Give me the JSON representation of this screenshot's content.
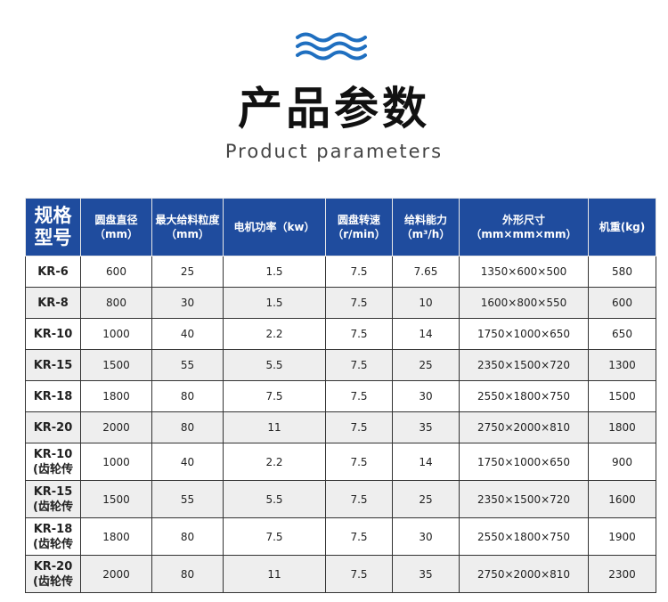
{
  "header": {
    "title": "产品参数",
    "subtitle": "Product parameters",
    "icon": "waves-icon",
    "accent": "#1f4c9e"
  },
  "table": {
    "columns": [
      "规格型号",
      "圆盘直径（mm）",
      "最大给料粒度（mm）",
      "电机功率（kw）",
      "圆盘转速（r/min）",
      "给料能力（m³/h）",
      "外形尺寸（mm×mm×mm）",
      "机重(kg)"
    ],
    "rows": [
      [
        "KR-6",
        "600",
        "25",
        "1.5",
        "7.5",
        "7.65",
        "1350×600×500",
        "580"
      ],
      [
        "KR-8",
        "800",
        "30",
        "1.5",
        "7.5",
        "10",
        "1600×800×550",
        "600"
      ],
      [
        "KR-10",
        "1000",
        "40",
        "2.2",
        "7.5",
        "14",
        "1750×1000×650",
        "650"
      ],
      [
        "KR-15",
        "1500",
        "55",
        "5.5",
        "7.5",
        "25",
        "2350×1500×720",
        "1300"
      ],
      [
        "KR-18",
        "1800",
        "80",
        "7.5",
        "7.5",
        "30",
        "2550×1800×750",
        "1500"
      ],
      [
        "KR-20",
        "2000",
        "80",
        "11",
        "7.5",
        "35",
        "2750×2000×810",
        "1800"
      ],
      [
        "KR-10 (齿轮传",
        "1000",
        "40",
        "2.2",
        "7.5",
        "14",
        "1750×1000×650",
        "900"
      ],
      [
        "KR-15 (齿轮传",
        "1500",
        "55",
        "5.5",
        "7.5",
        "25",
        "2350×1500×720",
        "1600"
      ],
      [
        "KR-18 (齿轮传",
        "1800",
        "80",
        "7.5",
        "7.5",
        "30",
        "2550×1800×750",
        "1900"
      ],
      [
        "KR-20 (齿轮传",
        "2000",
        "80",
        "11",
        "7.5",
        "35",
        "2750×2000×810",
        "2300"
      ]
    ]
  }
}
